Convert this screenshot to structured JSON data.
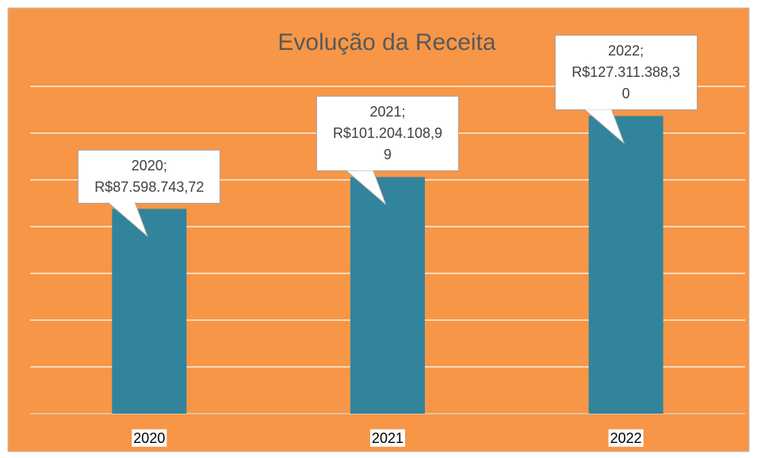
{
  "chart_data": {
    "type": "bar",
    "title": "Evolução da Receita",
    "categories": [
      "2020",
      "2021",
      "2022"
    ],
    "values": [
      87598743.72,
      101204108.99,
      127311388.3
    ],
    "value_labels": [
      "2020;\nR$87.598.743,72",
      "2021;\nR$101.204.108,99",
      "2022;\nR$127.311.388,30"
    ],
    "color": "#31849b",
    "background": "#f79646",
    "ylim": [
      0,
      140000000
    ],
    "yticks": [
      0,
      20000000,
      40000000,
      60000000,
      80000000,
      100000000,
      120000000,
      140000000
    ],
    "grid": true
  }
}
